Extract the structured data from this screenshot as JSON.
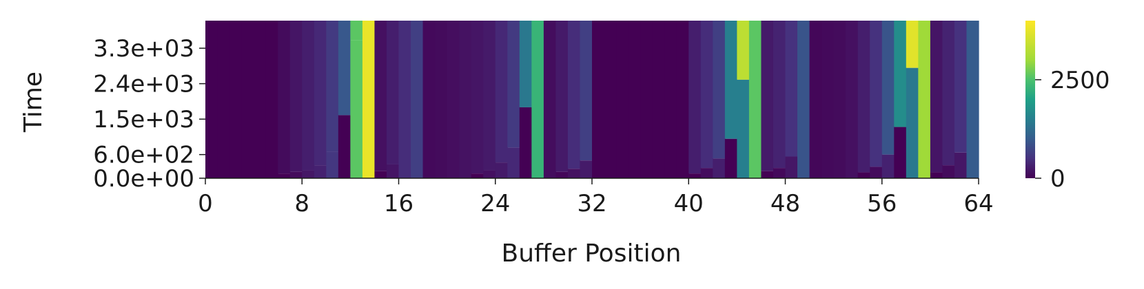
{
  "chart_data": {
    "type": "heatmap",
    "title": "",
    "xlabel": "Buffer Position",
    "ylabel": "Time",
    "x_ticks": [
      0,
      8,
      16,
      24,
      32,
      40,
      48,
      56,
      64
    ],
    "x_tick_labels": [
      "0",
      "8",
      "16",
      "24",
      "32",
      "40",
      "48",
      "56",
      "64"
    ],
    "y_ticks": [
      0,
      600,
      1500,
      2400,
      3300
    ],
    "y_tick_labels": [
      "0.0e+00",
      "6.0e+02",
      "1.5e+03",
      "2.4e+03",
      "3.3e+03"
    ],
    "xlim": [
      0,
      64
    ],
    "ylim": [
      0,
      4000
    ],
    "colormap": "viridis",
    "colorbar": {
      "range": [
        0,
        4000
      ],
      "ticks": [
        0,
        2500
      ],
      "tick_labels": [
        "0",
        "2500"
      ]
    },
    "columns": [
      {
        "level": 0,
        "peak": 0
      },
      {
        "level": 0,
        "peak": 0
      },
      {
        "level": 0,
        "peak": 0
      },
      {
        "level": 0,
        "peak": 0
      },
      {
        "level": 0,
        "peak": 0
      },
      {
        "level": 0,
        "peak": 0
      },
      {
        "level": 0,
        "peak": 100
      },
      {
        "level": 0,
        "peak": 200
      },
      {
        "level": 0,
        "peak": 300
      },
      {
        "level": 0,
        "peak": 400
      },
      {
        "level": 0,
        "peak": 600
      },
      {
        "level": 0,
        "peak": 950
      },
      {
        "level": 0,
        "peak": 2600
      },
      {
        "level": 0,
        "peak": 4000
      },
      {
        "level": 0,
        "peak": 150
      },
      {
        "level": 0,
        "peak": 300
      },
      {
        "level": 0,
        "peak": 450
      },
      {
        "level": 0,
        "peak": 650
      },
      {
        "level": 0,
        "peak": 80
      },
      {
        "level": 0,
        "peak": 100
      },
      {
        "level": 0,
        "peak": 130
      },
      {
        "level": 0,
        "peak": 170
      },
      {
        "level": 0,
        "peak": 200
      },
      {
        "level": 0,
        "peak": 250
      },
      {
        "level": 0,
        "peak": 400
      },
      {
        "level": 0,
        "peak": 600
      },
      {
        "level": 0,
        "peak": 1400
      },
      {
        "level": 0,
        "peak": 2900
      },
      {
        "level": 0,
        "peak": 120
      },
      {
        "level": 0,
        "peak": 250
      },
      {
        "level": 0,
        "peak": 450
      },
      {
        "level": 0,
        "peak": 650
      },
      {
        "level": 0,
        "peak": 0
      },
      {
        "level": 0,
        "peak": 0
      },
      {
        "level": 0,
        "peak": 0
      },
      {
        "level": 0,
        "peak": 0
      },
      {
        "level": 0,
        "peak": 0
      },
      {
        "level": 0,
        "peak": 0
      },
      {
        "level": 0,
        "peak": 0
      },
      {
        "level": 0,
        "peak": 0
      },
      {
        "level": 0,
        "peak": 300
      },
      {
        "level": 0,
        "peak": 450
      },
      {
        "level": 0,
        "peak": 650
      },
      {
        "level": 0,
        "peak": 1500
      },
      {
        "level": 0,
        "peak": 3300
      },
      {
        "level": 0,
        "peak": 150
      },
      {
        "level": 0,
        "peak": 250
      },
      {
        "level": 0,
        "peak": 350
      },
      {
        "level": 0,
        "peak": 500
      },
      {
        "level": 0,
        "peak": 900
      },
      {
        "level": 0,
        "peak": 60
      },
      {
        "level": 0,
        "peak": 80
      },
      {
        "level": 0,
        "peak": 100
      },
      {
        "level": 0,
        "peak": 150
      },
      {
        "level": 0,
        "peak": 300
      },
      {
        "level": 0,
        "peak": 500
      },
      {
        "level": 0,
        "peak": 900
      },
      {
        "level": 0,
        "peak": 1700
      },
      {
        "level": 0,
        "peak": 3700
      },
      {
        "level": 0,
        "peak": 100
      },
      {
        "level": 0,
        "peak": 200
      },
      {
        "level": 0,
        "peak": 350
      },
      {
        "level": 0,
        "peak": 500
      },
      {
        "level": 0,
        "peak": 1000
      }
    ],
    "column_breaks": [
      null,
      null,
      null,
      null,
      null,
      null,
      120,
      160,
      200,
      330,
      680,
      1600,
      3500,
      4000,
      180,
      350,
      null,
      null,
      null,
      null,
      null,
      null,
      120,
      200,
      400,
      780,
      1800,
      4000,
      null,
      160,
      240,
      450,
      null,
      null,
      null,
      null,
      null,
      null,
      null,
      null,
      120,
      260,
      500,
      1000,
      2500,
      4000,
      180,
      260,
      550,
      null,
      null,
      null,
      null,
      null,
      150,
      290,
      600,
      1300,
      2800,
      4000,
      150,
      330,
      650,
      null
    ],
    "below_break_levels": [
      null,
      null,
      null,
      null,
      null,
      null,
      0,
      100,
      220,
      330,
      560,
      0,
      2600,
      3800,
      0,
      200,
      null,
      null,
      null,
      null,
      null,
      null,
      0,
      150,
      250,
      400,
      0,
      2300,
      null,
      60,
      160,
      250,
      null,
      null,
      null,
      null,
      null,
      null,
      null,
      null,
      0,
      120,
      300,
      0,
      1500,
      2600,
      0,
      80,
      220,
      null,
      null,
      null,
      null,
      null,
      0,
      100,
      330,
      0,
      1400,
      3000,
      0,
      100,
      220,
      null
    ]
  }
}
